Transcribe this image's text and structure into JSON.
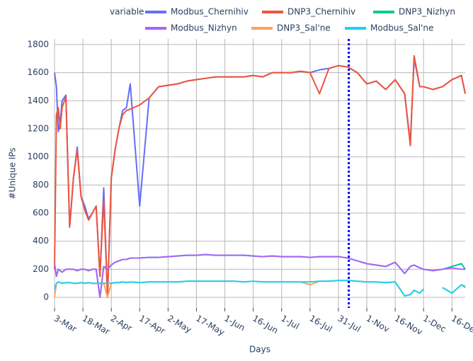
{
  "chart_data": {
    "type": "line",
    "xlabel": "Days",
    "ylabel": "#Unique IPs",
    "legend_title": "variable",
    "x": [
      0,
      1,
      2,
      3,
      4,
      6,
      8,
      10,
      12,
      14,
      16,
      18,
      20,
      22,
      24,
      26,
      28,
      30,
      32,
      34,
      36,
      38,
      40,
      45,
      50,
      55,
      60,
      65,
      70,
      75,
      80,
      85,
      90,
      95,
      100,
      105,
      110,
      115,
      120,
      125,
      130,
      135,
      140,
      145,
      150,
      155,
      160,
      165,
      170,
      175,
      180,
      185,
      188,
      190,
      193,
      195,
      200,
      205,
      210,
      215,
      217
    ],
    "xlim": [
      0,
      217
    ],
    "ylim": [
      -75,
      1840
    ],
    "xticks": [
      {
        "value": 0,
        "label": "3-Mar"
      },
      {
        "value": 15,
        "label": "18-Mar"
      },
      {
        "value": 30,
        "label": "2-Apr"
      },
      {
        "value": 45,
        "label": "17-Apr"
      },
      {
        "value": 60,
        "label": "2-May"
      },
      {
        "value": 75,
        "label": "17-May"
      },
      {
        "value": 90,
        "label": "1-Jun"
      },
      {
        "value": 105,
        "label": "16-Jun"
      },
      {
        "value": 120,
        "label": "1-Jul"
      },
      {
        "value": 135,
        "label": "16-Jul"
      },
      {
        "value": 150,
        "label": "31-Jul"
      },
      {
        "value": 165,
        "label": "1-Nov"
      },
      {
        "value": 180,
        "label": "16-Nov"
      },
      {
        "value": 195,
        "label": "1-Dec"
      },
      {
        "value": 210,
        "label": "16-Dec"
      }
    ],
    "yticks": [
      0,
      200,
      400,
      600,
      800,
      1000,
      1200,
      1400,
      1600,
      1800
    ],
    "grid": true,
    "vline_x": 155.5,
    "vline_color": "#0000ff",
    "series": [
      {
        "name": "Modbus_Chernihiv",
        "color": "#636efa",
        "values": [
          1600,
          1500,
          1180,
          1250,
          1400,
          1440,
          500,
          850,
          1070,
          720,
          650,
          560,
          600,
          650,
          150,
          780,
          0,
          850,
          1050,
          1200,
          1330,
          1350,
          1520,
          650,
          1420,
          1500,
          1510,
          1520,
          1540,
          1550,
          1560,
          1570,
          1570,
          1570,
          1570,
          1580,
          1570,
          1600,
          1600,
          1600,
          1610,
          1600,
          1620,
          1630,
          1650,
          1640,
          1600,
          1520,
          1540,
          1480,
          1550,
          1450,
          1100,
          1700,
          1500,
          1500,
          1480,
          1500,
          1550,
          1580,
          1450
        ]
      },
      {
        "name": "DNP3_Chernihiv",
        "color": "#ef553b",
        "values": [
          200,
          1300,
          1350,
          1200,
          1350,
          1430,
          500,
          850,
          1050,
          720,
          620,
          550,
          600,
          650,
          150,
          700,
          0,
          850,
          1050,
          1200,
          1300,
          1330,
          1340,
          1370,
          1420,
          1500,
          1510,
          1520,
          1540,
          1550,
          1560,
          1570,
          1570,
          1570,
          1570,
          1580,
          1570,
          1600,
          1600,
          1600,
          1610,
          1600,
          1450,
          1630,
          1650,
          1640,
          1600,
          1520,
          1540,
          1480,
          1550,
          1450,
          1080,
          1720,
          1500,
          1500,
          1480,
          1500,
          1550,
          1580,
          1450
        ]
      },
      {
        "name": "DNP3_Nizhyn",
        "color": "#00cc96",
        "values": [
          240,
          150,
          200,
          190,
          180,
          200,
          200,
          200,
          190,
          200,
          200,
          190,
          200,
          200,
          0,
          220,
          200,
          230,
          250,
          260,
          270,
          270,
          280,
          280,
          285,
          285,
          290,
          295,
          300,
          300,
          305,
          300,
          300,
          300,
          300,
          295,
          290,
          295,
          290,
          290,
          290,
          285,
          290,
          290,
          290,
          280,
          260,
          240,
          230,
          220,
          250,
          170,
          220,
          230,
          210,
          200,
          190,
          200,
          220,
          240,
          200
        ]
      },
      {
        "name": "Modbus_Nizhyn",
        "color": "#ab63fa",
        "values": [
          240,
          150,
          200,
          190,
          180,
          200,
          200,
          200,
          190,
          200,
          200,
          190,
          200,
          200,
          0,
          220,
          200,
          230,
          250,
          260,
          270,
          270,
          280,
          280,
          285,
          285,
          290,
          295,
          300,
          300,
          305,
          300,
          300,
          300,
          300,
          295,
          290,
          295,
          290,
          290,
          290,
          285,
          290,
          290,
          290,
          280,
          260,
          240,
          230,
          220,
          250,
          170,
          220,
          230,
          210,
          200,
          190,
          200,
          210,
          200,
          200
        ]
      },
      {
        "name": "DNP3_Sal'ne",
        "color": "#ffa15a",
        "values": [
          0,
          100,
          110,
          105,
          100,
          105,
          105,
          100,
          100,
          105,
          100,
          105,
          100,
          100,
          100,
          100,
          0,
          100,
          105,
          105,
          110,
          105,
          110,
          105,
          110,
          110,
          110,
          110,
          115,
          115,
          115,
          115,
          115,
          115,
          110,
          115,
          110,
          110,
          110,
          110,
          110,
          90,
          115,
          115,
          120,
          120,
          115,
          110,
          110,
          105,
          110,
          10,
          20,
          50,
          30,
          60,
          null,
          70,
          30,
          90,
          80
        ]
      },
      {
        "name": "Modbus_Sal'ne",
        "color": "#19d3f3",
        "values": [
          60,
          100,
          110,
          105,
          100,
          105,
          105,
          100,
          100,
          105,
          100,
          105,
          100,
          100,
          100,
          100,
          100,
          100,
          105,
          105,
          110,
          105,
          110,
          105,
          110,
          110,
          110,
          110,
          115,
          115,
          115,
          115,
          115,
          115,
          110,
          115,
          110,
          110,
          110,
          110,
          110,
          110,
          115,
          115,
          120,
          120,
          115,
          110,
          110,
          105,
          110,
          10,
          20,
          50,
          30,
          60,
          null,
          70,
          30,
          90,
          70
        ]
      }
    ]
  }
}
